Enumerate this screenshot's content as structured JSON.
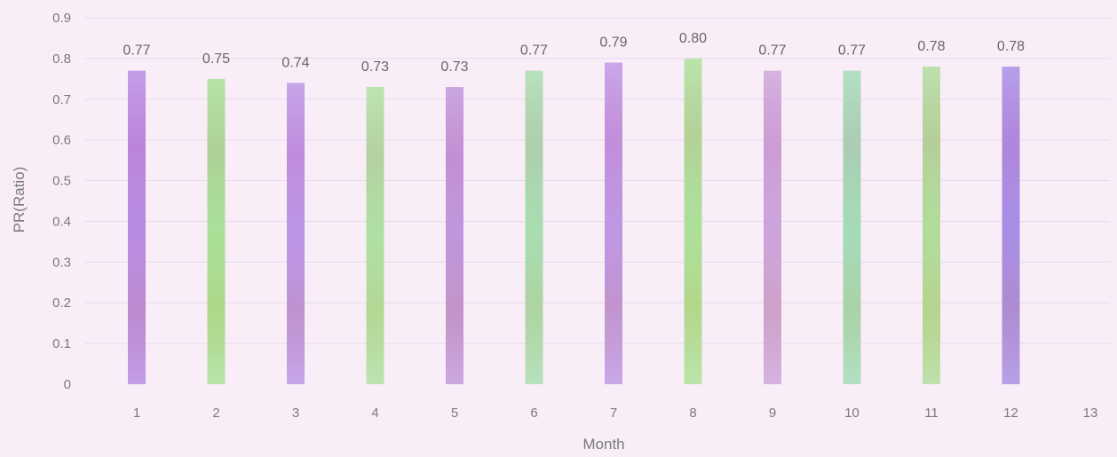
{
  "chart_data": {
    "type": "bar",
    "title": "",
    "xlabel": "Month",
    "ylabel": "PR(Ratio)",
    "ylim": [
      0,
      0.9
    ],
    "y_ticks": [
      "0",
      "0.1",
      "0.2",
      "0.3",
      "0.4",
      "0.5",
      "0.6",
      "0.7",
      "0.8",
      "0.9"
    ],
    "x_ticks": [
      "1",
      "2",
      "3",
      "4",
      "5",
      "6",
      "7",
      "8",
      "9",
      "10",
      "11",
      "12",
      "13"
    ],
    "categories": [
      "1",
      "2",
      "3",
      "4",
      "5",
      "6",
      "7",
      "8",
      "9",
      "10",
      "11",
      "12"
    ],
    "values": [
      0.77,
      0.75,
      0.74,
      0.73,
      0.73,
      0.77,
      0.79,
      0.8,
      0.77,
      0.77,
      0.78,
      0.78
    ],
    "data_labels": [
      "0.77",
      "0.75",
      "0.74",
      "0.73",
      "0.73",
      "0.77",
      "0.79",
      "0.80",
      "0.77",
      "0.77",
      "0.78",
      "0.78"
    ],
    "grid": true,
    "legend": "none",
    "bar_colors": [
      "#b07ee0",
      "#9fdc8c",
      "#b488e2",
      "#a6dc98",
      "#b98ad8",
      "#9fd8a8",
      "#b78ae0",
      "#a4dc8e",
      "#c69ad8",
      "#9ad6b0",
      "#a8d890",
      "#a080e2"
    ]
  }
}
